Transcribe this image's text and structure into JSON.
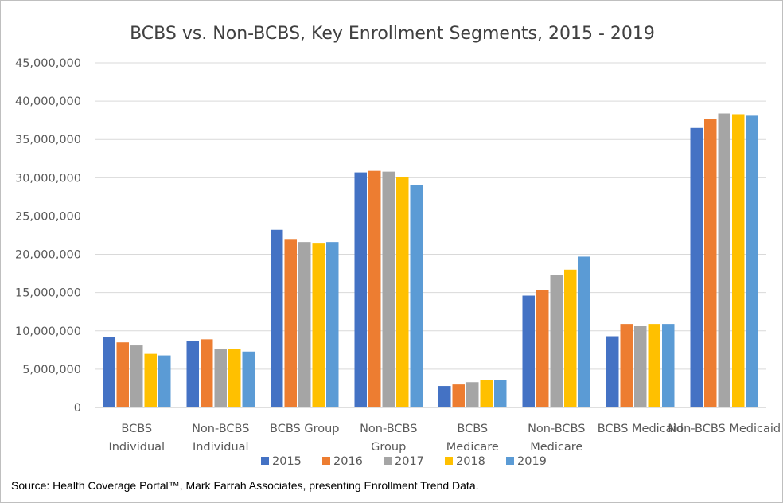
{
  "chart_data": {
    "type": "bar",
    "title": "BCBS vs. Non-BCBS, Key Enrollment Segments, 2015 - 2019",
    "xlabel": "",
    "ylabel": "",
    "ylim": [
      0,
      45000000
    ],
    "yticks": [
      "0",
      "5,000,000",
      "10,000,000",
      "15,000,000",
      "20,000,000",
      "25,000,000",
      "30,000,000",
      "35,000,000",
      "40,000,000",
      "45,000,000"
    ],
    "grid": true,
    "legend_position": "bottom",
    "categories": [
      [
        "BCBS",
        "Individual"
      ],
      [
        "Non-BCBS",
        "Individual"
      ],
      [
        "BCBS Group"
      ],
      [
        "Non-BCBS",
        "Group"
      ],
      [
        "BCBS",
        "Medicare"
      ],
      [
        "Non-BCBS",
        "Medicare"
      ],
      [
        "BCBS Medicaid"
      ],
      [
        "Non-BCBS Medicaid"
      ]
    ],
    "series": [
      {
        "name": "2015",
        "color": "#4472C4",
        "values": [
          9200000,
          8700000,
          23200000,
          30700000,
          2800000,
          14600000,
          9300000,
          36500000
        ]
      },
      {
        "name": "2016",
        "color": "#ED7D31",
        "values": [
          8500000,
          8900000,
          22000000,
          30900000,
          3000000,
          15300000,
          10900000,
          37700000
        ]
      },
      {
        "name": "2017",
        "color": "#A5A5A5",
        "values": [
          8100000,
          7600000,
          21600000,
          30800000,
          3300000,
          17300000,
          10700000,
          38400000
        ]
      },
      {
        "name": "2018",
        "color": "#FFC000",
        "values": [
          7000000,
          7600000,
          21500000,
          30100000,
          3600000,
          18000000,
          10900000,
          38300000
        ]
      },
      {
        "name": "2019",
        "color": "#5B9BD5",
        "values": [
          6800000,
          7300000,
          21600000,
          29000000,
          3600000,
          19700000,
          10900000,
          38100000
        ]
      }
    ]
  },
  "source_note": "Source: Health Coverage Portal™, Mark Farrah Associates, presenting Enrollment Trend Data."
}
